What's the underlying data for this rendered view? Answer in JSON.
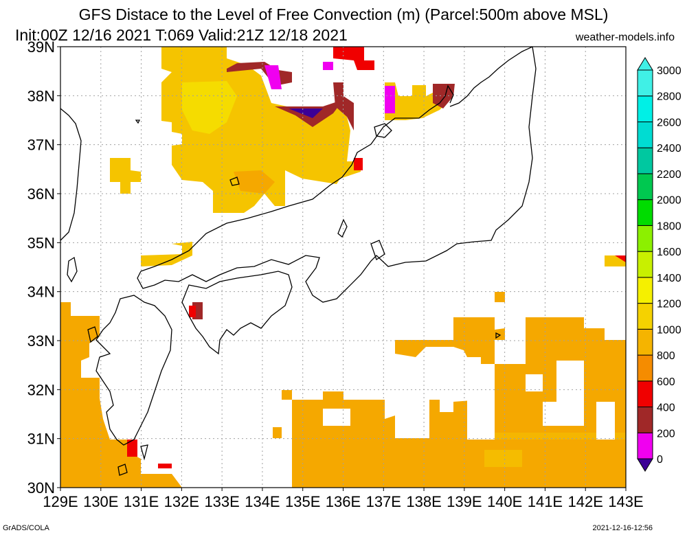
{
  "title": {
    "line1": "GFS Distace to the Level of Free Convection (m) (Parcel:500m above MSL)",
    "line2": "Init:00Z 12/16 2021 T:069 Valid:21Z 12/18 2021"
  },
  "site": "weather-models.info",
  "footer": {
    "left": "GrADS/COLA",
    "right": "2021-12-16-12:56"
  },
  "axes": {
    "lon_labels": [
      "129E",
      "130E",
      "131E",
      "132E",
      "133E",
      "134E",
      "135E",
      "136E",
      "137E",
      "138E",
      "139E",
      "140E",
      "141E",
      "142E",
      "143E"
    ],
    "lat_labels": [
      "30N",
      "31N",
      "32N",
      "33N",
      "34N",
      "35N",
      "36N",
      "37N",
      "38N",
      "39N"
    ]
  },
  "colorbar": {
    "levels": [
      "0",
      "200",
      "400",
      "600",
      "800",
      "1000",
      "1200",
      "1400",
      "1600",
      "1800",
      "2000",
      "2200",
      "2400",
      "2600",
      "2800",
      "3000"
    ],
    "colors": [
      "#3c0096",
      "#f000f0",
      "#a02828",
      "#f00000",
      "#f58c00",
      "#f5b400",
      "#f5d200",
      "#f5f000",
      "#c8f000",
      "#8cf000",
      "#00dc00",
      "#00c850",
      "#00c8a0",
      "#00dcd2",
      "#00f0e6",
      "#40f0e6"
    ]
  },
  "field_colors": {
    "orange": "#f5a800",
    "gold": "#f5c400",
    "yellow": "#f5dc00",
    "red": "#f00000",
    "darkred": "#a02828",
    "magenta": "#f000f0",
    "purple": "#3c0096"
  },
  "coastline_color": "#000000",
  "grid_color": "#a0a0a0"
}
